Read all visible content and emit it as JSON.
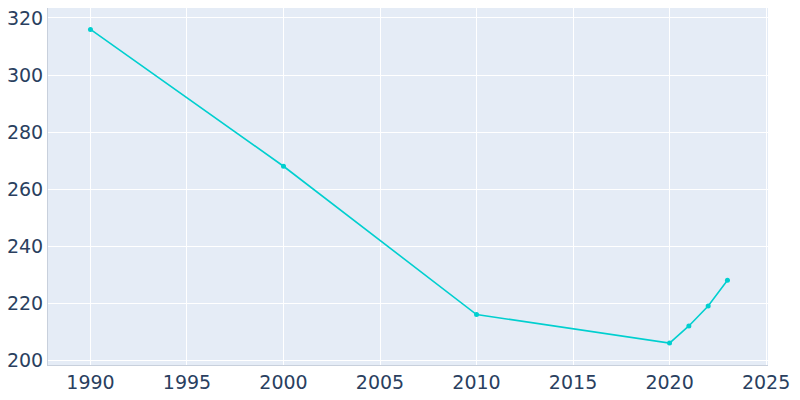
{
  "chart_data": {
    "type": "line",
    "x": [
      1990,
      2000,
      2010,
      2020,
      2021,
      2022,
      2023
    ],
    "values": [
      316,
      268,
      216,
      206,
      212,
      219,
      228
    ],
    "color": "#00cfcf",
    "marker": "circle",
    "xlim": [
      1987.8,
      2025.1
    ],
    "xticks": [
      1990,
      1995,
      2000,
      2005,
      2010,
      2015,
      2020,
      2025
    ],
    "ylim": [
      198.3,
      323.5
    ],
    "yticks": [
      200,
      220,
      240,
      260,
      280,
      300,
      320
    ],
    "grid": true
  }
}
